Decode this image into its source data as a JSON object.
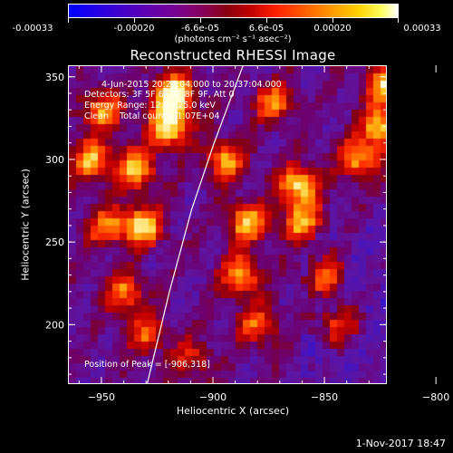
{
  "colorbar": {
    "tick_labels": [
      "-0.00033",
      "-0.00020",
      "-6.6e-05",
      "6.6e-05",
      "0.00020",
      "0.00033"
    ],
    "units": "(photons cm⁻² s⁻¹ asec⁻²)",
    "colors": [
      "#0000ff",
      "#7a0090",
      "#8a0010",
      "#ff2000",
      "#ff9a00",
      "#ffffff"
    ]
  },
  "chart_data": {
    "type": "heatmap",
    "title": "Reconstructed RHESSI Image",
    "xlabel": "Heliocentric X (arcsec)",
    "ylabel": "Heliocentric Y (arcsec)",
    "xlim": [
      -965,
      -822
    ],
    "ylim": [
      164,
      357
    ],
    "xticks": [
      -950,
      -900,
      -850,
      -800
    ],
    "yticks": [
      200,
      250,
      300,
      350
    ],
    "xtick_labels": [
      "−950",
      "−900",
      "−850",
      "−800"
    ],
    "ytick_labels": [
      "200",
      "250",
      "300",
      "350"
    ],
    "value_range": [
      -0.00033,
      0.00033
    ],
    "limb_curve": [
      [
        -930,
        164
      ],
      [
        -920,
        220
      ],
      [
        -910,
        270
      ],
      [
        -900,
        310
      ],
      [
        -887,
        357
      ]
    ],
    "peak": [
      -906,
      318
    ],
    "hotspots": [
      [
        -918,
        340,
        1.0
      ],
      [
        -920,
        320,
        0.9
      ],
      [
        -935,
        295,
        0.8
      ],
      [
        -932,
        260,
        0.85
      ],
      [
        -950,
        330,
        0.7
      ],
      [
        -955,
        300,
        0.7
      ],
      [
        -948,
        260,
        0.6
      ],
      [
        -940,
        220,
        0.6
      ],
      [
        -930,
        195,
        0.5
      ],
      [
        -895,
        300,
        0.7
      ],
      [
        -885,
        262,
        0.75
      ],
      [
        -888,
        230,
        0.7
      ],
      [
        -880,
        200,
        0.55
      ],
      [
        -873,
        335,
        0.6
      ],
      [
        -862,
        285,
        0.85
      ],
      [
        -860,
        262,
        0.7
      ],
      [
        -850,
        230,
        0.6
      ],
      [
        -845,
        200,
        0.5
      ],
      [
        -835,
        300,
        0.7
      ],
      [
        -825,
        320,
        0.8
      ],
      [
        -822,
        345,
        0.85
      ],
      [
        -910,
        180,
        0.4
      ]
    ]
  },
  "info": {
    "line1": "4-Jun-2015 20:27:04.000 to 20:37:04.000",
    "line2": "Detectors: 3F 5F 6F 7F 8F 9F, Att 0",
    "line3": "Energy Range: 12.0 - 25.0 keV",
    "line4": "Clean    Total counts: 1.07E+04",
    "peak": "Position of Peak = [-906,318]"
  },
  "timestamp": "1-Nov-2017 18:47"
}
